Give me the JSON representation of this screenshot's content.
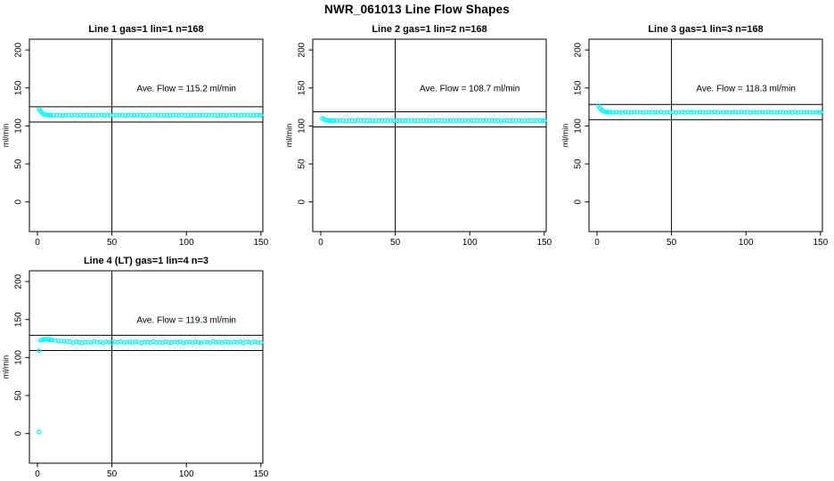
{
  "figure_title": "NWR_061013  Line Flow Shapes",
  "colors": {
    "points": "#00ffff",
    "axis": "#000000",
    "text": "#000000",
    "background": "#ffffff"
  },
  "chart_data": [
    {
      "type": "scatter",
      "title": "Line 1 gas=1 lin=1 n=168",
      "annotation": "Ave. Flow =  115.2  ml/min",
      "ave_flow_ml_min": 115.2,
      "ylabel": "ml/min",
      "x_ticks": [
        0,
        50,
        100,
        150
      ],
      "y_ticks": [
        0,
        50,
        100,
        150,
        200
      ],
      "xlim": [
        -5.5,
        152
      ],
      "ylim": [
        -39,
        214
      ],
      "vline_x": 50,
      "hlines_y": [
        125.2,
        105.2
      ],
      "grid": false,
      "points": [
        [
          1,
          122
        ],
        [
          2,
          119.6
        ],
        [
          3,
          117.5
        ],
        [
          4,
          116
        ],
        [
          5,
          115.2
        ],
        [
          6,
          114.7
        ],
        [
          7,
          114.4
        ],
        [
          8,
          114.2
        ],
        [
          9,
          114.2
        ],
        [
          11,
          113.9
        ],
        [
          13,
          114.4
        ],
        [
          15,
          114
        ],
        [
          17,
          113.8
        ],
        [
          19,
          114.3
        ],
        [
          21,
          114.1
        ],
        [
          23,
          113.9
        ],
        [
          25,
          114.5
        ],
        [
          27,
          114
        ],
        [
          29,
          114.2
        ],
        [
          31,
          113.8
        ],
        [
          33,
          114.4
        ],
        [
          35,
          114.1
        ],
        [
          37,
          113.9
        ],
        [
          39,
          114.3
        ],
        [
          41,
          114
        ],
        [
          43,
          114.5
        ],
        [
          45,
          113.8
        ],
        [
          47,
          114.2
        ],
        [
          49,
          114
        ],
        [
          51,
          114.4
        ],
        [
          53,
          113.9
        ],
        [
          55,
          114.1
        ],
        [
          57,
          114.3
        ],
        [
          59,
          113.8
        ],
        [
          61,
          114.5
        ],
        [
          63,
          114
        ],
        [
          65,
          114.2
        ],
        [
          67,
          113.9
        ],
        [
          69,
          114.4
        ],
        [
          71,
          114.1
        ],
        [
          73,
          113.8
        ],
        [
          75,
          114.3
        ],
        [
          77,
          114
        ],
        [
          79,
          114.5
        ],
        [
          81,
          113.9
        ],
        [
          83,
          114.2
        ],
        [
          85,
          114
        ],
        [
          87,
          114.4
        ],
        [
          89,
          113.8
        ],
        [
          91,
          114.1
        ],
        [
          93,
          114.3
        ],
        [
          95,
          113.9
        ],
        [
          97,
          114.5
        ],
        [
          99,
          114
        ],
        [
          101,
          114.2
        ],
        [
          103,
          113.8
        ],
        [
          105,
          114.4
        ],
        [
          107,
          114
        ],
        [
          109,
          114.1
        ],
        [
          111,
          114.3
        ],
        [
          113,
          113.9
        ],
        [
          115,
          114.5
        ],
        [
          117,
          114
        ],
        [
          119,
          114.2
        ],
        [
          121,
          113.8
        ],
        [
          123,
          114.4
        ],
        [
          125,
          114.1
        ],
        [
          127,
          113.9
        ],
        [
          129,
          114.3
        ],
        [
          131,
          114
        ],
        [
          133,
          114.5
        ],
        [
          135,
          113.8
        ],
        [
          137,
          114.2
        ],
        [
          139,
          114
        ],
        [
          141,
          114.4
        ],
        [
          143,
          113.9
        ],
        [
          145,
          114.1
        ],
        [
          147,
          114.3
        ],
        [
          149,
          114
        ],
        [
          150,
          114.2
        ]
      ]
    },
    {
      "type": "scatter",
      "title": "Line 2 gas=1 lin=2 n=168",
      "annotation": "Ave. Flow =  108.7  ml/min",
      "ave_flow_ml_min": 108.7,
      "ylabel": "ml/min",
      "x_ticks": [
        0,
        50,
        100,
        150
      ],
      "y_ticks": [
        0,
        50,
        100,
        150,
        200
      ],
      "xlim": [
        -5.5,
        152
      ],
      "ylim": [
        -39,
        214
      ],
      "vline_x": 50,
      "hlines_y": [
        118.7,
        98.7
      ],
      "grid": false,
      "points": [
        [
          1,
          110.2
        ],
        [
          2,
          108.9
        ],
        [
          3,
          108
        ],
        [
          4,
          107.5
        ],
        [
          5,
          107.2
        ],
        [
          6,
          107
        ],
        [
          7,
          106.9
        ],
        [
          8,
          106.8
        ],
        [
          9,
          107
        ],
        [
          11,
          106.7
        ],
        [
          13,
          107.2
        ],
        [
          15,
          106.8
        ],
        [
          17,
          106.6
        ],
        [
          19,
          107.1
        ],
        [
          21,
          106.9
        ],
        [
          23,
          106.7
        ],
        [
          25,
          107.3
        ],
        [
          27,
          106.8
        ],
        [
          29,
          107
        ],
        [
          31,
          106.6
        ],
        [
          33,
          107.2
        ],
        [
          35,
          106.9
        ],
        [
          37,
          106.7
        ],
        [
          39,
          107.1
        ],
        [
          41,
          106.8
        ],
        [
          43,
          107.3
        ],
        [
          45,
          106.6
        ],
        [
          47,
          107
        ],
        [
          49,
          106.8
        ],
        [
          51,
          107.2
        ],
        [
          53,
          106.7
        ],
        [
          55,
          106.9
        ],
        [
          57,
          107.1
        ],
        [
          59,
          106.6
        ],
        [
          61,
          107.3
        ],
        [
          63,
          106.8
        ],
        [
          65,
          107
        ],
        [
          67,
          106.7
        ],
        [
          69,
          107.2
        ],
        [
          71,
          106.9
        ],
        [
          73,
          106.6
        ],
        [
          75,
          107.1
        ],
        [
          77,
          106.8
        ],
        [
          79,
          107.3
        ],
        [
          81,
          106.7
        ],
        [
          83,
          107
        ],
        [
          85,
          106.8
        ],
        [
          87,
          107.2
        ],
        [
          89,
          106.6
        ],
        [
          91,
          106.9
        ],
        [
          93,
          107.1
        ],
        [
          95,
          106.7
        ],
        [
          97,
          107.3
        ],
        [
          99,
          106.8
        ],
        [
          101,
          107
        ],
        [
          103,
          106.6
        ],
        [
          105,
          107.2
        ],
        [
          107,
          106.8
        ],
        [
          109,
          106.9
        ],
        [
          111,
          107.1
        ],
        [
          113,
          106.7
        ],
        [
          115,
          107.3
        ],
        [
          117,
          106.8
        ],
        [
          119,
          107
        ],
        [
          121,
          106.6
        ],
        [
          123,
          107.2
        ],
        [
          125,
          106.9
        ],
        [
          127,
          106.7
        ],
        [
          129,
          107.1
        ],
        [
          131,
          106.8
        ],
        [
          133,
          107.3
        ],
        [
          135,
          106.6
        ],
        [
          137,
          107
        ],
        [
          139,
          106.8
        ],
        [
          141,
          107.2
        ],
        [
          143,
          106.7
        ],
        [
          145,
          106.9
        ],
        [
          147,
          107.1
        ],
        [
          149,
          106.8
        ],
        [
          150,
          107
        ]
      ]
    },
    {
      "type": "scatter",
      "title": "Line 3 gas=1 lin=3 n=168",
      "annotation": "Ave. Flow =  118.3  ml/min",
      "ave_flow_ml_min": 118.3,
      "ylabel": "ml/min",
      "x_ticks": [
        0,
        50,
        100,
        150
      ],
      "y_ticks": [
        0,
        50,
        100,
        150,
        200
      ],
      "xlim": [
        -5.5,
        152
      ],
      "ylim": [
        -39,
        214
      ],
      "vline_x": 50,
      "hlines_y": [
        128.3,
        108.3
      ],
      "grid": false,
      "points": [
        [
          1,
          127
        ],
        [
          2,
          123.5
        ],
        [
          3,
          121
        ],
        [
          4,
          119.8
        ],
        [
          5,
          119
        ],
        [
          6,
          118.5
        ],
        [
          7,
          118.2
        ],
        [
          8,
          118
        ],
        [
          9,
          118.1
        ],
        [
          11,
          117.8
        ],
        [
          13,
          118.3
        ],
        [
          15,
          117.9
        ],
        [
          17,
          117.7
        ],
        [
          19,
          118.2
        ],
        [
          21,
          118
        ],
        [
          23,
          117.8
        ],
        [
          25,
          118.4
        ],
        [
          27,
          117.9
        ],
        [
          29,
          118.1
        ],
        [
          31,
          117.7
        ],
        [
          33,
          118.3
        ],
        [
          35,
          118
        ],
        [
          37,
          117.8
        ],
        [
          39,
          118.2
        ],
        [
          41,
          117.9
        ],
        [
          43,
          118.4
        ],
        [
          45,
          117.7
        ],
        [
          47,
          118.1
        ],
        [
          49,
          117.9
        ],
        [
          51,
          118.3
        ],
        [
          53,
          117.8
        ],
        [
          55,
          118
        ],
        [
          57,
          118.2
        ],
        [
          59,
          117.7
        ],
        [
          61,
          118.4
        ],
        [
          63,
          117.9
        ],
        [
          65,
          118.1
        ],
        [
          67,
          117.8
        ],
        [
          69,
          118.3
        ],
        [
          71,
          118
        ],
        [
          73,
          117.7
        ],
        [
          75,
          118.2
        ],
        [
          77,
          117.9
        ],
        [
          79,
          118.4
        ],
        [
          81,
          117.8
        ],
        [
          83,
          118.1
        ],
        [
          85,
          117.9
        ],
        [
          87,
          118.3
        ],
        [
          89,
          117.7
        ],
        [
          91,
          118
        ],
        [
          93,
          118.2
        ],
        [
          95,
          117.8
        ],
        [
          97,
          118.4
        ],
        [
          99,
          117.9
        ],
        [
          101,
          118.1
        ],
        [
          103,
          117.7
        ],
        [
          105,
          118.3
        ],
        [
          107,
          117.9
        ],
        [
          109,
          118
        ],
        [
          111,
          118.2
        ],
        [
          113,
          117.8
        ],
        [
          115,
          118.4
        ],
        [
          117,
          117.9
        ],
        [
          119,
          118.1
        ],
        [
          121,
          117.7
        ],
        [
          123,
          118.3
        ],
        [
          125,
          118
        ],
        [
          127,
          117.8
        ],
        [
          129,
          118.2
        ],
        [
          131,
          117.9
        ],
        [
          133,
          118.4
        ],
        [
          135,
          117.7
        ],
        [
          137,
          118.1
        ],
        [
          139,
          117.9
        ],
        [
          141,
          118.3
        ],
        [
          143,
          117.8
        ],
        [
          145,
          118
        ],
        [
          147,
          118.2
        ],
        [
          149,
          117.9
        ],
        [
          150,
          118.1
        ]
      ]
    },
    {
      "type": "scatter",
      "title": "Line 4 (LT) gas=1 lin=4 n=3",
      "annotation": "Ave. Flow =  119.3  ml/min",
      "ave_flow_ml_min": 119.3,
      "ylabel": "ml/min",
      "x_ticks": [
        0,
        50,
        100,
        150
      ],
      "y_ticks": [
        0,
        50,
        100,
        150,
        200
      ],
      "xlim": [
        -5.5,
        152
      ],
      "ylim": [
        -39,
        214
      ],
      "vline_x": 50,
      "hlines_y": [
        129.3,
        109.3
      ],
      "grid": false,
      "points": [
        [
          1,
          2
        ],
        [
          1,
          109
        ],
        [
          2,
          122.5
        ],
        [
          3,
          123.2
        ],
        [
          4,
          123.8
        ],
        [
          5,
          124.2
        ],
        [
          6,
          124.1
        ],
        [
          7,
          123.8
        ],
        [
          8,
          123.5
        ],
        [
          9,
          123.2
        ],
        [
          10,
          123
        ],
        [
          12,
          122.5
        ],
        [
          14,
          122.1
        ],
        [
          16,
          121.8
        ],
        [
          18,
          121.5
        ],
        [
          20,
          121.2
        ],
        [
          22,
          120.7
        ],
        [
          24,
          119.6
        ],
        [
          26,
          121
        ],
        [
          28,
          120
        ],
        [
          30,
          119.4
        ],
        [
          32,
          120.5
        ],
        [
          34,
          120.2
        ],
        [
          36,
          119.7
        ],
        [
          38,
          121.2
        ],
        [
          40,
          119.9
        ],
        [
          42,
          120.4
        ],
        [
          44,
          119.5
        ],
        [
          46,
          120.9
        ],
        [
          48,
          120.1
        ],
        [
          50,
          119.6
        ],
        [
          52,
          120.6
        ],
        [
          54,
          120
        ],
        [
          56,
          121
        ],
        [
          58,
          119.5
        ],
        [
          60,
          120.3
        ],
        [
          62,
          120.7
        ],
        [
          64,
          119.6
        ],
        [
          66,
          121
        ],
        [
          68,
          120
        ],
        [
          70,
          119.4
        ],
        [
          72,
          120.5
        ],
        [
          74,
          120.2
        ],
        [
          76,
          119.7
        ],
        [
          78,
          121.2
        ],
        [
          80,
          119.9
        ],
        [
          82,
          120.4
        ],
        [
          84,
          119.5
        ],
        [
          86,
          120.9
        ],
        [
          88,
          120.1
        ],
        [
          90,
          119.6
        ],
        [
          92,
          120.6
        ],
        [
          94,
          120
        ],
        [
          96,
          121
        ],
        [
          98,
          119.5
        ],
        [
          100,
          120.3
        ],
        [
          102,
          120.7
        ],
        [
          104,
          119.6
        ],
        [
          106,
          121
        ],
        [
          108,
          120
        ],
        [
          110,
          119.4
        ],
        [
          112,
          120.5
        ],
        [
          114,
          120.2
        ],
        [
          116,
          119.7
        ],
        [
          118,
          121.2
        ],
        [
          120,
          119.9
        ],
        [
          122,
          120.4
        ],
        [
          124,
          119.5
        ],
        [
          126,
          120.9
        ],
        [
          128,
          120.1
        ],
        [
          130,
          119.6
        ],
        [
          132,
          120.6
        ],
        [
          134,
          120
        ],
        [
          136,
          121
        ],
        [
          138,
          119.5
        ],
        [
          140,
          120.3
        ],
        [
          142,
          120.7
        ],
        [
          144,
          119.6
        ],
        [
          146,
          121
        ],
        [
          148,
          120
        ],
        [
          150,
          119.8
        ]
      ]
    }
  ]
}
